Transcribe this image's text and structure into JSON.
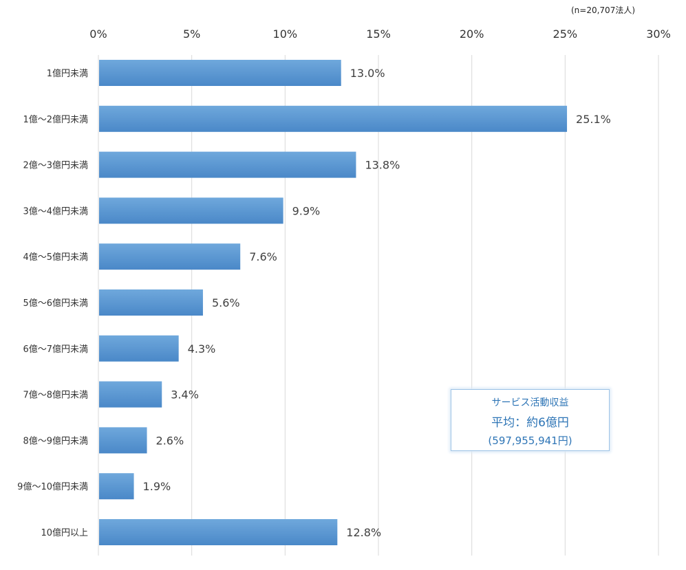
{
  "note": "(n=20,707法人)",
  "callout": {
    "line1": "サービス活動収益",
    "line2": "平均：約6億円",
    "line3": "(597,955,941円)"
  },
  "chart_data": {
    "type": "bar",
    "orientation": "horizontal",
    "categories": [
      "1億円未満",
      "1億～2億円未満",
      "2億～3億円未満",
      "3億～4億円未満",
      "4億～5億円未満",
      "5億～6億円未満",
      "6億～7億円未満",
      "7億～8億円未満",
      "8億～9億円未満",
      "9億～10億円未満",
      "10億円以上"
    ],
    "values": [
      13.0,
      25.1,
      13.8,
      9.9,
      7.6,
      5.6,
      4.3,
      3.4,
      2.6,
      1.9,
      12.8
    ],
    "data_labels": [
      "13.0%",
      "25.1%",
      "13.8%",
      "9.9%",
      "7.6%",
      "5.6%",
      "4.3%",
      "3.4%",
      "2.6%",
      "1.9%",
      "12.8%"
    ],
    "xlim": [
      0,
      30
    ],
    "xticks": [
      0,
      5,
      10,
      15,
      20,
      25,
      30
    ],
    "xtick_labels": [
      "0%",
      "5%",
      "10%",
      "15%",
      "20%",
      "25%",
      "30%"
    ],
    "axis_position": "top",
    "grid": true,
    "bar_color": "#5b9bd5",
    "title": "",
    "xlabel": "",
    "ylabel": ""
  }
}
